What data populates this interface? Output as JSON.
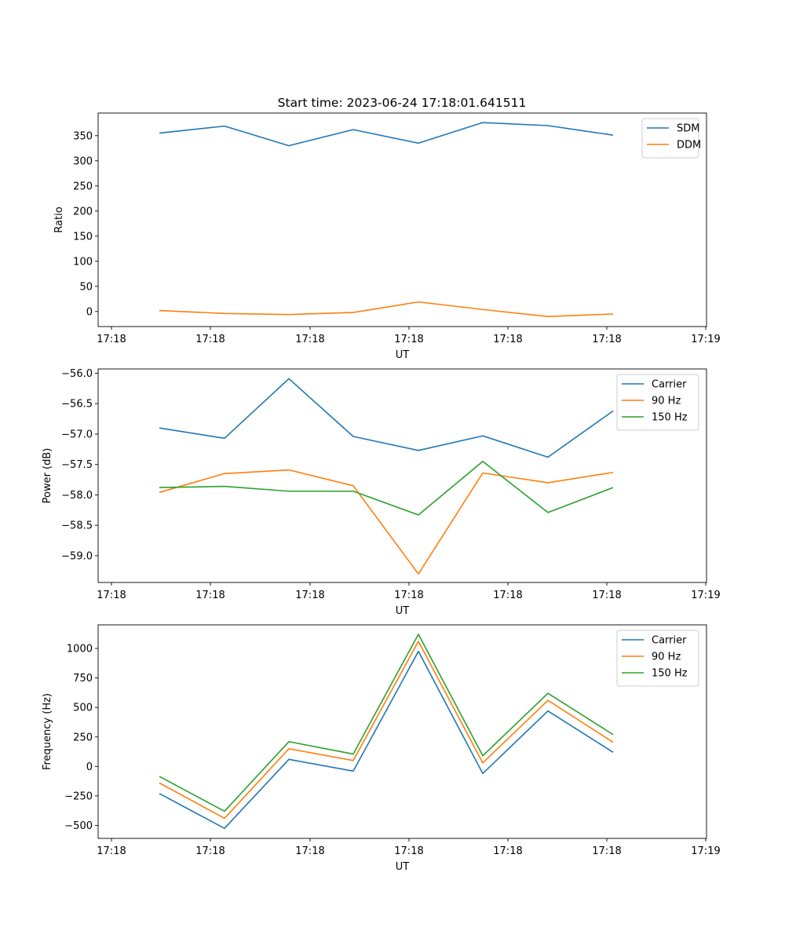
{
  "title": "Start time: 2023-06-24 17:18:01.641511",
  "chart_data": [
    {
      "type": "line",
      "xlabel": "UT",
      "ylabel": "Ratio",
      "x_tick_labels": [
        "17:18",
        "17:18",
        "17:18",
        "17:18",
        "17:18",
        "17:18",
        "17:19"
      ],
      "y_ticks": [
        0,
        50,
        100,
        150,
        200,
        250,
        300,
        350
      ],
      "ylim": [
        -30,
        395
      ],
      "legend_position": "upper right",
      "series": [
        {
          "name": "SDM",
          "color": "#1f77b4",
          "values": [
            355,
            369,
            330,
            362,
            335,
            376,
            370,
            351
          ]
        },
        {
          "name": "DDM",
          "color": "#ff7f0e",
          "values": [
            2,
            -4,
            -6,
            -2,
            19,
            4,
            -10,
            -5
          ]
        }
      ]
    },
    {
      "type": "line",
      "xlabel": "UT",
      "ylabel": "Power (dB)",
      "x_tick_labels": [
        "17:18",
        "17:18",
        "17:18",
        "17:18",
        "17:18",
        "17:18",
        "17:19"
      ],
      "y_ticks": [
        -59.0,
        -58.5,
        -58.0,
        -57.5,
        -57.0,
        -56.5,
        -56.0
      ],
      "y_tick_labels": [
        "−59.0",
        "−58.5",
        "−58.0",
        "−57.5",
        "−57.0",
        "−56.5",
        "−56.0"
      ],
      "ylim": [
        -59.44,
        -55.93
      ],
      "legend_position": "upper right",
      "series": [
        {
          "name": "Carrier",
          "color": "#1f77b4",
          "values": [
            -56.9,
            -57.07,
            -56.09,
            -57.04,
            -57.27,
            -57.03,
            -57.38,
            -56.62
          ]
        },
        {
          "name": "90 Hz",
          "color": "#ff7f0e",
          "values": [
            -57.96,
            -57.65,
            -57.59,
            -57.85,
            -59.3,
            -57.64,
            -57.8,
            -57.63
          ]
        },
        {
          "name": "150 Hz",
          "color": "#2ca02c",
          "values": [
            -57.88,
            -57.86,
            -57.94,
            -57.94,
            -58.33,
            -57.45,
            -58.29,
            -57.88
          ]
        }
      ]
    },
    {
      "type": "line",
      "xlabel": "UT",
      "ylabel": "Frequency (Hz)",
      "x_tick_labels": [
        "17:18",
        "17:18",
        "17:18",
        "17:18",
        "17:18",
        "17:18",
        "17:19"
      ],
      "y_ticks": [
        -500,
        -250,
        0,
        250,
        500,
        750,
        1000
      ],
      "y_tick_labels": [
        "−500",
        "−250",
        "0",
        "250",
        "500",
        "750",
        "1000"
      ],
      "ylim": [
        -610,
        1200
      ],
      "legend_position": "upper right",
      "series": [
        {
          "name": "Carrier",
          "color": "#1f77b4",
          "values": [
            -230,
            -525,
            60,
            -40,
            975,
            -60,
            470,
            120
          ]
        },
        {
          "name": "90 Hz",
          "color": "#ff7f0e",
          "values": [
            -140,
            -440,
            150,
            50,
            1060,
            30,
            560,
            205
          ]
        },
        {
          "name": "150 Hz",
          "color": "#2ca02c",
          "values": [
            -85,
            -380,
            210,
            105,
            1120,
            90,
            620,
            270
          ]
        }
      ]
    }
  ]
}
